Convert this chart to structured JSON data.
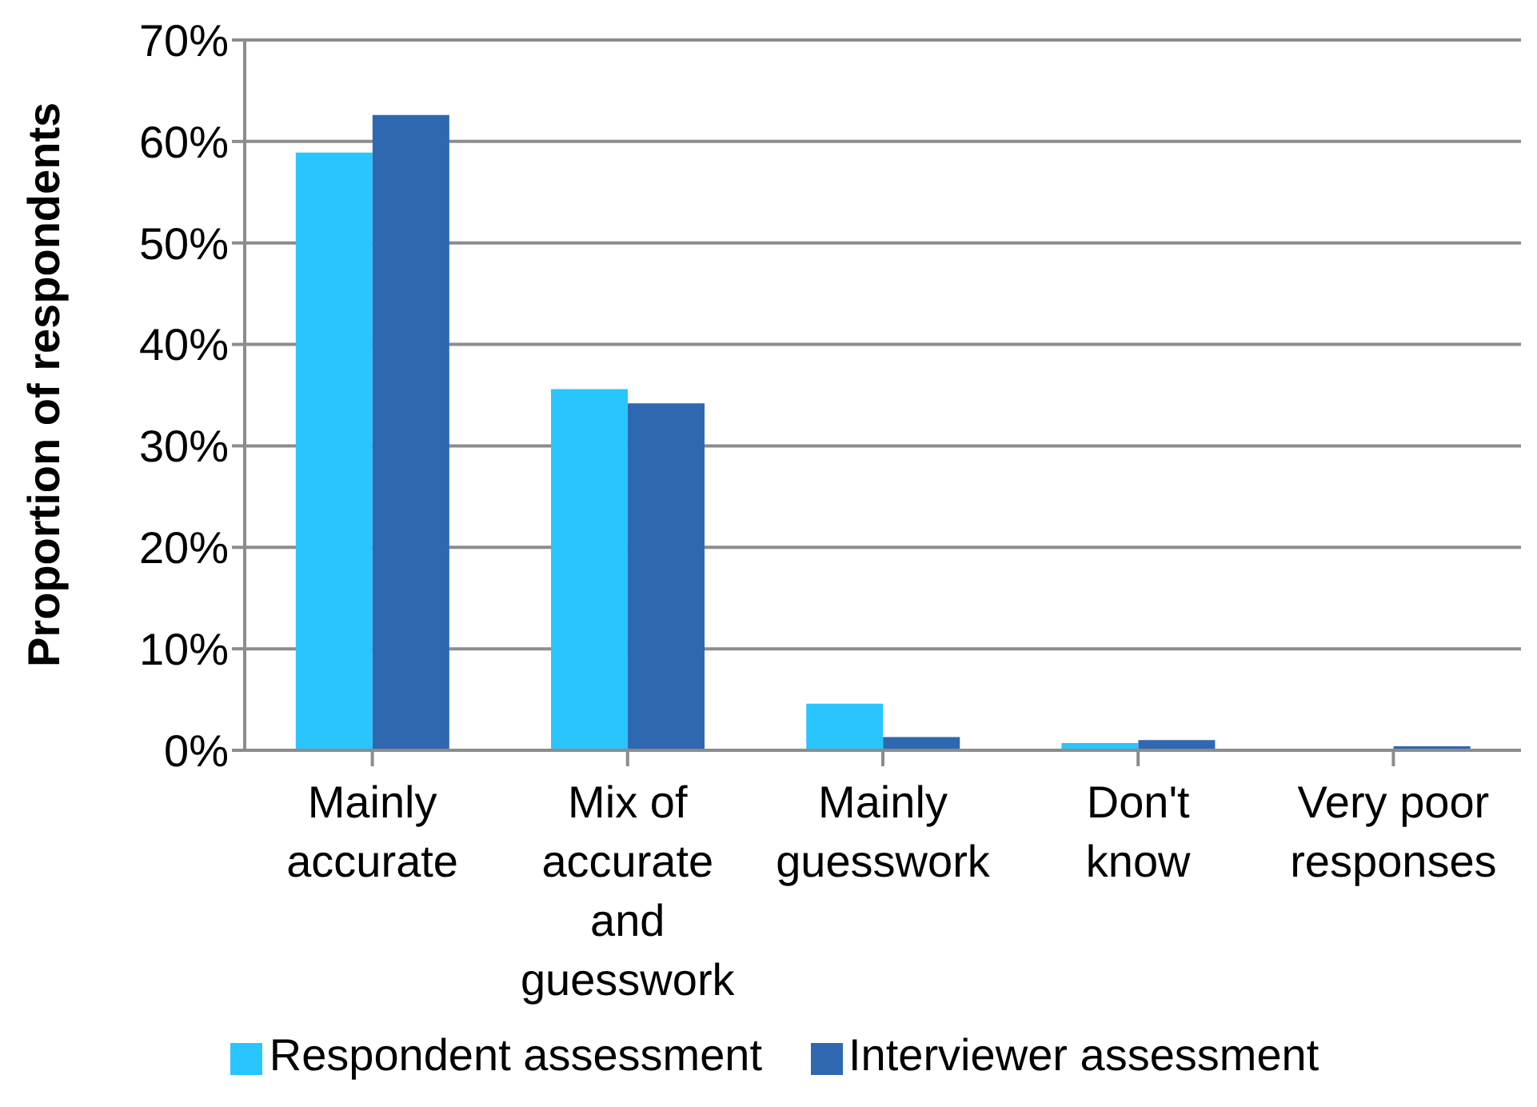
{
  "chart_data": {
    "type": "bar",
    "ylabel": "Proportion of respondents",
    "categories": [
      "Mainly accurate",
      "Mix of accurate and guesswork",
      "Mainly guesswork",
      "Don't know",
      "Very poor responses"
    ],
    "series": [
      {
        "name": "Respondent assessment",
        "color": "#29c5ff",
        "values": [
          58.9,
          35.6,
          4.6,
          0.7,
          0
        ]
      },
      {
        "name": "Interviewer assessment",
        "color": "#2e68b0",
        "values": [
          62.6,
          34.2,
          1.3,
          1.0,
          0.4
        ]
      }
    ],
    "ylim": [
      0,
      70
    ],
    "yticks": [
      {
        "value": 0,
        "label": "0%"
      },
      {
        "value": 10,
        "label": "10%"
      },
      {
        "value": 20,
        "label": "20%"
      },
      {
        "value": 30,
        "label": "30%"
      },
      {
        "value": 40,
        "label": "40%"
      },
      {
        "value": 50,
        "label": "50%"
      },
      {
        "value": 60,
        "label": "60%"
      },
      {
        "value": 70,
        "label": "70%"
      }
    ],
    "grid": "y",
    "legend": "bottom"
  }
}
